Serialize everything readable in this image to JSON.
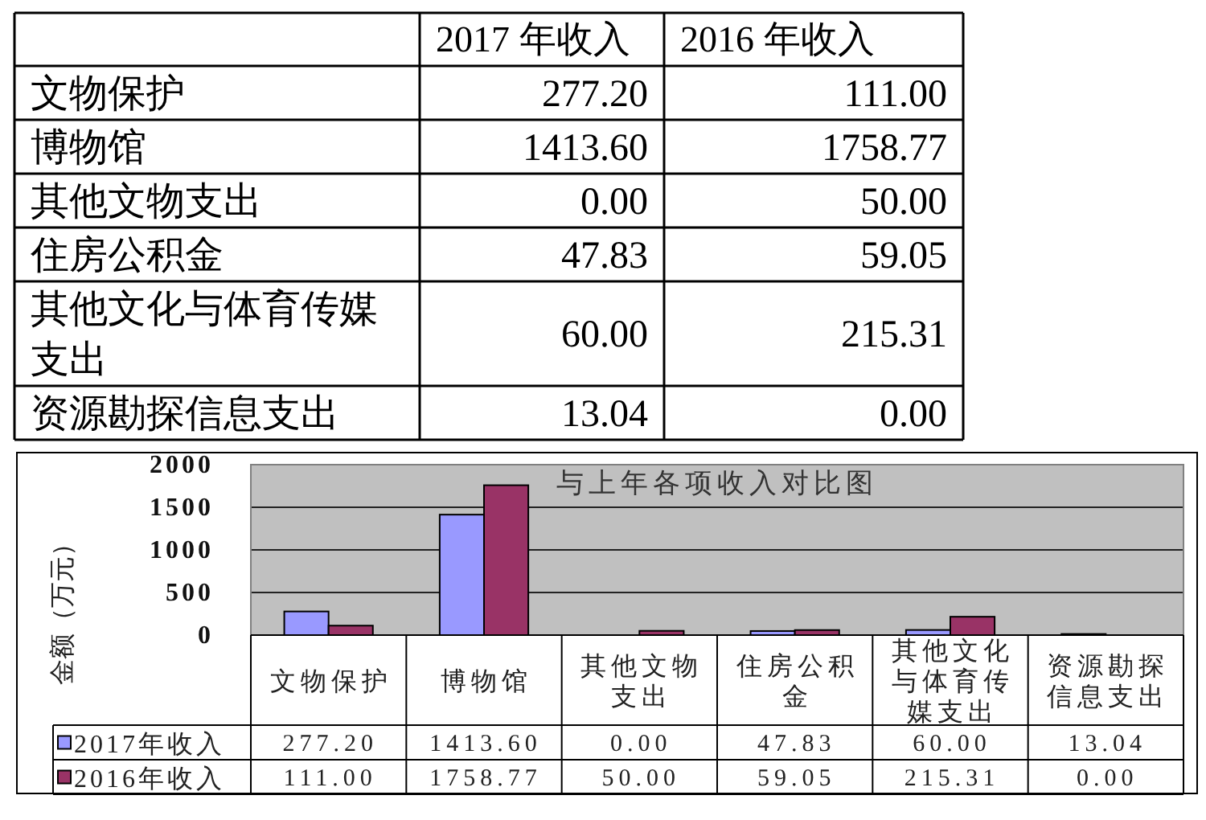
{
  "chart_data": [
    {
      "type": "other",
      "categories": [
        "文物保护",
        "博物馆",
        "其他文物支出",
        "住房公积金",
        "其他文化与体育传媒支出",
        "资源勘探信息支出"
      ],
      "series": [
        {
          "name": "2017 年收入",
          "values": [
            277.2,
            1413.6,
            0,
            47.83,
            60,
            13.04
          ],
          "value_labels": [
            "277.20",
            "1413.60",
            "0.00",
            "47.83",
            "60.00",
            "13.04"
          ]
        },
        {
          "name": "2016 年收入",
          "values": [
            111,
            1758.77,
            50,
            59.05,
            215.31,
            0
          ],
          "value_labels": [
            "111.00",
            "1758.77",
            "50.00",
            "59.05",
            "215.31",
            "0.00"
          ]
        }
      ]
    },
    {
      "type": "bar",
      "title": "与上年各项收入对比图",
      "ylabel": "金额（万元）",
      "categories": [
        "文物保护",
        "博物馆",
        "其他文物支出",
        "住房公积金",
        "其他文化与体育传媒支出",
        "资源勘探信息支出"
      ],
      "series": [
        {
          "name": "2017年收入",
          "color": "#9999ff",
          "values": [
            277.2,
            1413.6,
            0,
            47.83,
            60,
            13.04
          ],
          "value_labels": [
            "277.20",
            "1413.60",
            "0.00",
            "47.83",
            "60.00",
            "13.04"
          ]
        },
        {
          "name": "2016年收入",
          "color": "#993366",
          "values": [
            111,
            1758.77,
            50,
            59.05,
            215.31,
            0
          ],
          "value_labels": [
            "111.00",
            "1758.77",
            "50.00",
            "59.05",
            "215.31",
            "0.00"
          ]
        }
      ],
      "ylim": [
        0,
        2000
      ],
      "yticks": [
        0,
        500,
        1000,
        1500,
        2000
      ],
      "grid": "y",
      "legend": "bottom"
    }
  ]
}
